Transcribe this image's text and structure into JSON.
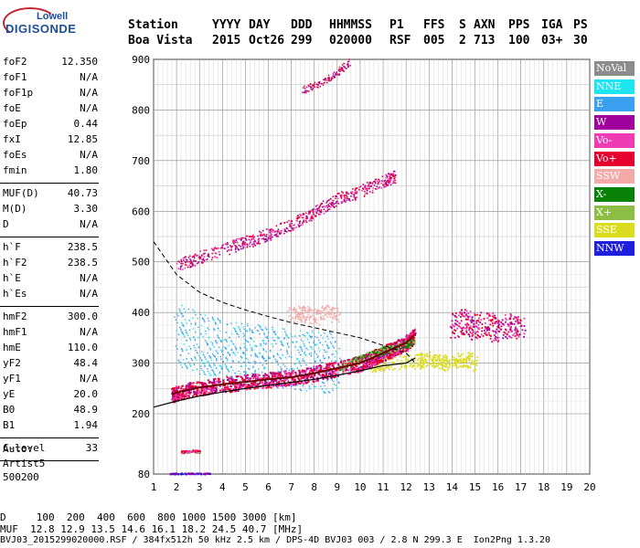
{
  "logo": {
    "line1": "Lowell",
    "line2": "DIGISONDE"
  },
  "header": {
    "labels": [
      "Station",
      "YYYY",
      "DAY",
      "DDD",
      "HHMMSS",
      "P1",
      "FFS",
      "S",
      "AXN",
      "PPS",
      "IGA",
      "PS"
    ],
    "values": [
      "Boa Vista",
      "2015",
      "Oct26",
      "299",
      "020000",
      "RSF",
      "005",
      "2",
      "713",
      "100",
      "03+",
      "30"
    ]
  },
  "params_group1": [
    {
      "name": "foF2",
      "value": "12.350"
    },
    {
      "name": "foF1",
      "value": "N/A"
    },
    {
      "name": "foF1p",
      "value": "N/A"
    },
    {
      "name": "foE",
      "value": "N/A"
    },
    {
      "name": "foEp",
      "value": "0.44"
    },
    {
      "name": "fxI",
      "value": "12.85"
    },
    {
      "name": "foEs",
      "value": "N/A"
    },
    {
      "name": "fmin",
      "value": "1.80"
    }
  ],
  "params_group2": [
    {
      "name": "MUF(D)",
      "value": "40.73"
    },
    {
      "name": "M(D)",
      "value": "3.30"
    },
    {
      "name": "D",
      "value": "N/A"
    }
  ],
  "params_group3": [
    {
      "name": "h`F",
      "value": "238.5"
    },
    {
      "name": "h`F2",
      "value": "238.5"
    },
    {
      "name": "h`E",
      "value": "N/A"
    },
    {
      "name": "h`Es",
      "value": "N/A"
    }
  ],
  "params_group4": [
    {
      "name": "hmF2",
      "value": "300.0"
    },
    {
      "name": "hmF1",
      "value": "N/A"
    },
    {
      "name": "hmE",
      "value": "110.0"
    },
    {
      "name": "yF2",
      "value": "48.4"
    },
    {
      "name": "yF1",
      "value": "N/A"
    },
    {
      "name": "yE",
      "value": "20.0"
    },
    {
      "name": "B0",
      "value": "48.9"
    },
    {
      "name": "B1",
      "value": "1.94"
    }
  ],
  "params_group5": [
    {
      "name": "C-level",
      "value": "33"
    }
  ],
  "auto_block": {
    "line1": "Auto:",
    "line2": "Artist5",
    "line3": "500200"
  },
  "legend": [
    {
      "label": "NoVal",
      "color": "#8c8c8c"
    },
    {
      "label": "NNE",
      "color": "#1ee6f0"
    },
    {
      "label": "E",
      "color": "#3ca0f0"
    },
    {
      "label": "W",
      "color": "#a0009b"
    },
    {
      "label": "Vo-",
      "color": "#f03cb4"
    },
    {
      "label": "Vo+",
      "color": "#e6002d"
    },
    {
      "label": "SSW",
      "color": "#f5aaaa"
    },
    {
      "label": "X-",
      "color": "#0a820a"
    },
    {
      "label": "X+",
      "color": "#8cbe46"
    },
    {
      "label": "SSE",
      "color": "#dcdc1e"
    },
    {
      "label": "NNW",
      "color": "#1e1edc"
    }
  ],
  "footer": {
    "line1": "D     100  200  400  600  800 1000 1500 3000 [km]",
    "line2": "MUF  12.8 12.9 13.5 14.6 16.1 18.2 24.5 40.7 [MHz]",
    "line3": "BVJ03_2015299020000.RSF / 384fx512h 50 kHz 2.5 km / DPS-4D BVJ03 003 / 2.8 N 299.3 E  Ion2Png 1.3.20"
  },
  "chart_data": {
    "type": "scatter",
    "title": "",
    "xlabel": "",
    "ylabel": "",
    "xlim": [
      1,
      20
    ],
    "ylim": [
      80,
      900
    ],
    "x_ticks": [
      1,
      2,
      3,
      4,
      5,
      6,
      7,
      8,
      9,
      10,
      11,
      12,
      13,
      14,
      15,
      16,
      17,
      18,
      19,
      20
    ],
    "y_ticks": [
      80,
      200,
      300,
      400,
      500,
      600,
      700,
      800,
      900
    ],
    "grid": true,
    "trace_O_main": {
      "x": [
        1.8,
        2,
        3,
        4,
        5,
        6,
        7,
        8,
        9,
        10,
        10.5,
        11,
        11.5,
        12,
        12.35
      ],
      "y": [
        238,
        242,
        252,
        258,
        263,
        268,
        272,
        280,
        290,
        300,
        310,
        320,
        330,
        340,
        355
      ]
    },
    "trace_O_second": {
      "x": [
        2,
        3,
        4,
        5,
        6,
        7,
        8,
        9,
        10,
        11,
        11.5
      ],
      "y": [
        495,
        510,
        525,
        540,
        555,
        575,
        600,
        625,
        640,
        660,
        670
      ]
    },
    "trace_O_third": {
      "x": [
        7.5,
        8,
        8.5,
        9,
        9.5
      ],
      "y": [
        840,
        850,
        860,
        875,
        895
      ]
    },
    "model_profile": {
      "x": [
        1,
        2,
        3,
        4,
        5,
        6,
        7,
        8,
        9,
        10,
        11,
        12,
        12.4
      ],
      "y": [
        213,
        225,
        235,
        243,
        250,
        256,
        262,
        268,
        276,
        285,
        295,
        300,
        310
      ]
    },
    "muf_curve": {
      "x": [
        1,
        2,
        3,
        4,
        5,
        6,
        7,
        8,
        9,
        10,
        11,
        12,
        12.4
      ],
      "y": [
        540,
        475,
        440,
        420,
        405,
        392,
        380,
        370,
        360,
        350,
        335,
        320,
        300
      ]
    },
    "x_trace": {
      "x": [
        9,
        9.5,
        10,
        10.5,
        11,
        11.5,
        12,
        12.35
      ],
      "y": [
        290,
        300,
        310,
        318,
        326,
        332,
        338,
        345
      ]
    },
    "sse_cluster": {
      "x": [
        10.5,
        11,
        12.5,
        13,
        13.5,
        14,
        14.5,
        15
      ],
      "y": [
        295,
        300,
        305,
        310,
        300,
        305,
        310,
        300
      ]
    },
    "w_cluster": {
      "x": [
        14,
        14.5,
        15,
        15.5,
        16,
        16.5,
        17
      ],
      "y": [
        375,
        385,
        370,
        380,
        365,
        375,
        370
      ]
    },
    "ssw_cluster": {
      "x": [
        7,
        7.5,
        8,
        8.5,
        9
      ],
      "y": [
        395,
        400,
        390,
        405,
        395
      ]
    },
    "nne_cluster": {
      "x": [
        2,
        3,
        4,
        5,
        6,
        7,
        8,
        9
      ],
      "y": [
        360,
        340,
        330,
        320,
        315,
        310,
        305,
        300
      ]
    },
    "es_blob": {
      "x": [
        2.2,
        2.5,
        2.8,
        3.0
      ],
      "y": [
        125,
        126,
        127,
        126
      ]
    },
    "nnw_blob": {
      "x": [
        1.7,
        2,
        2.5,
        3,
        3.5
      ],
      "y": [
        82,
        82,
        82,
        82,
        82
      ]
    }
  }
}
